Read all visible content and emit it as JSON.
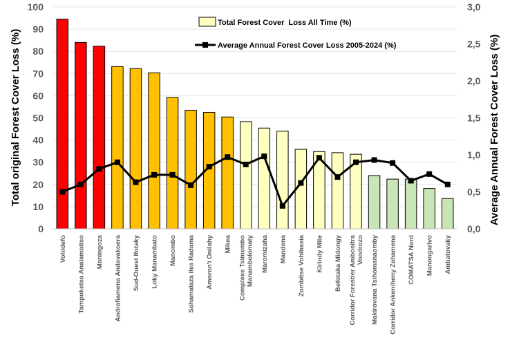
{
  "chart_data": {
    "type": "bar",
    "categories": [
      "Vohidefo",
      "Tampoketsa Analamaitso",
      "Maningoza",
      "Andrafiamena Andavakoera",
      "Sud-Ouest Ifotaky",
      "Loky Manambato",
      "Manombo",
      "Sahamalaza Iles Radama",
      "Amoron'i Onilahy",
      "Mikea",
      "Complexe Tsimembo Manambolomaty",
      "Maromizaha",
      "Mandena",
      "Zombitse Vohibasia",
      "Kirindy Mite",
      "Befotaka Midongy",
      "Corridor Forestier Ambositra Vondrozo",
      "Makirovana Tsihomanaomby",
      "Corridor Ankeniheny Zahamena",
      "COMATSA Nord",
      "Manongarivo",
      "Ambatovaky"
    ],
    "category_lines": [
      [
        "Vohidefo"
      ],
      [
        "Tampoketsa Analamaitso"
      ],
      [
        "Maningoza"
      ],
      [
        "Andrafiamena Andavakoera"
      ],
      [
        "Sud-Ouest Ifotaky"
      ],
      [
        "Loky Manambato"
      ],
      [
        "Manombo"
      ],
      [
        "Sahamalaza Iles Radama"
      ],
      [
        "Amoron'i Onilahy"
      ],
      [
        "Mikea"
      ],
      [
        "Complexe Tsimembo",
        "Manambolomaty"
      ],
      [
        "Maromizaha"
      ],
      [
        "Mandena"
      ],
      [
        "Zombitse Vohibasia"
      ],
      [
        "Kirindy Mite"
      ],
      [
        "Befotaka Midongy"
      ],
      [
        "Corridor Forestier Ambositra",
        "Vondrozo"
      ],
      [
        "Makirovana Tsihomanaomby"
      ],
      [
        "Corridor Ankeniheny Zahamena"
      ],
      [
        "COMATSA Nord"
      ],
      [
        "Manongarivo"
      ],
      [
        "Ambatovaky"
      ]
    ],
    "series": [
      {
        "name": "Total Forest Cover  Loss All Time (%)",
        "type": "bar",
        "axis": "left",
        "values": [
          94.5,
          84,
          82.3,
          73.1,
          72.2,
          70.3,
          59.2,
          53.4,
          52.5,
          50.4,
          48.3,
          45.4,
          44,
          35.8,
          34.8,
          34.3,
          33.6,
          24,
          22.4,
          22.4,
          18.2,
          13.7
        ]
      },
      {
        "name": "Average Annual Forest Cover Loss 2005-2024 (%)",
        "type": "line",
        "axis": "right",
        "values": [
          0.5,
          0.6,
          0.81,
          0.9,
          0.63,
          0.73,
          0.73,
          0.59,
          0.84,
          0.97,
          0.87,
          0.98,
          0.31,
          0.62,
          0.96,
          0.7,
          0.9,
          0.93,
          0.89,
          0.65,
          0.74,
          0.6
        ]
      }
    ],
    "bar_colors": [
      "#ff0000",
      "#ff0000",
      "#ff0000",
      "#ffc000",
      "#ffc000",
      "#ffc000",
      "#ffc000",
      "#ffc000",
      "#ffc000",
      "#ffc000",
      "#ffffc0",
      "#ffffc0",
      "#ffffc0",
      "#ffffc0",
      "#ffffc0",
      "#ffffc0",
      "#ffffc0",
      "#c9e5b5",
      "#c9e5b5",
      "#c9e5b5",
      "#c9e5b5",
      "#c9e5b5"
    ],
    "line_color": "#000000",
    "ylabel": "Total original Forest Cover Loss (%)",
    "y2label": "Average Annual Forest Cover Loss (%)",
    "ylim": [
      0,
      100
    ],
    "y2lim": [
      0,
      3.0
    ],
    "yticks": [
      "0",
      "10",
      "20",
      "30",
      "40",
      "50",
      "60",
      "70",
      "80",
      "90",
      "100"
    ],
    "y2ticks": [
      "0,0",
      "0,5",
      "1,0",
      "1,5",
      "2,0",
      "2,5",
      "3,0"
    ],
    "grid": true,
    "legend_position": "top-right"
  }
}
